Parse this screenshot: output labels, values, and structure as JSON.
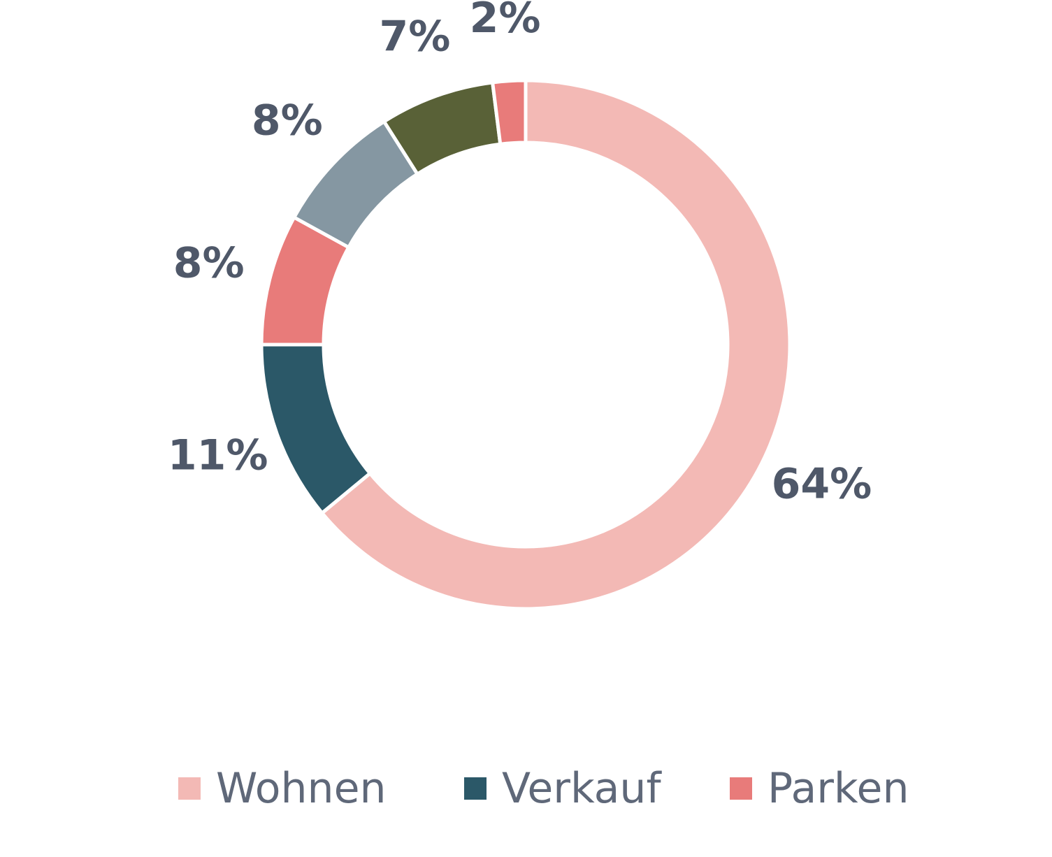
{
  "chart_data": {
    "type": "pie",
    "donut": true,
    "start_angle_deg": 0,
    "direction": "clockwise",
    "slices": [
      {
        "label": "64%",
        "value": 64,
        "color": "#f3b9b5"
      },
      {
        "label": "11%",
        "value": 11,
        "color": "#2b5868"
      },
      {
        "label": "8%",
        "value": 8,
        "color": "#e87b7a"
      },
      {
        "label": "8%",
        "value": 8,
        "color": "#8597a2"
      },
      {
        "label": "7%",
        "value": 7,
        "color": "#596137"
      },
      {
        "label": "2%",
        "value": 2,
        "color": "#e87b7a"
      }
    ],
    "legend": {
      "position": "bottom",
      "entries": [
        {
          "name": "Wohnen",
          "color": "#f3b9b5"
        },
        {
          "name": "Verkauf",
          "color": "#2b5868"
        },
        {
          "name": "Parken",
          "color": "#e87b7a"
        }
      ]
    },
    "label_color": "#4f5869",
    "legend_text_color": "#5f6879"
  }
}
